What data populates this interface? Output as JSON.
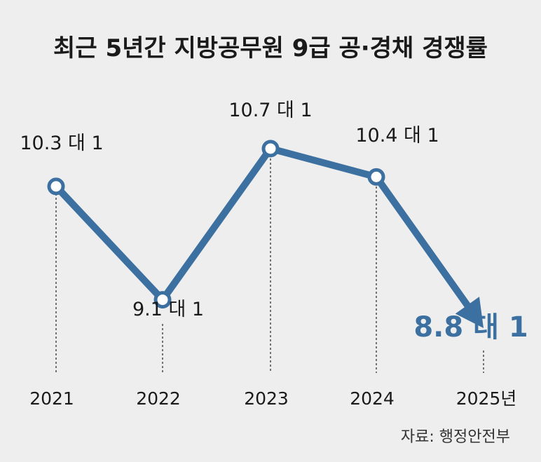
{
  "chart_data": {
    "type": "line",
    "title": "최근 5년간 지방공무원 9급 공·경채 경쟁률",
    "categories": [
      "2021",
      "2022",
      "2023",
      "2024",
      "2025년"
    ],
    "values": [
      10.3,
      9.1,
      10.7,
      10.4,
      8.8
    ],
    "point_labels": [
      "10.3 대 1",
      "9.1 대 1",
      "10.7 대 1",
      "10.4 대 1",
      "8.8 대 1"
    ],
    "ylim": [
      8.8,
      10.9
    ],
    "source": "자료: 행정안전부",
    "colors": {
      "line": "#3c70a0",
      "highlight": "#3c70a0",
      "background": "#eeeeee",
      "text": "#1a1a1a"
    }
  }
}
